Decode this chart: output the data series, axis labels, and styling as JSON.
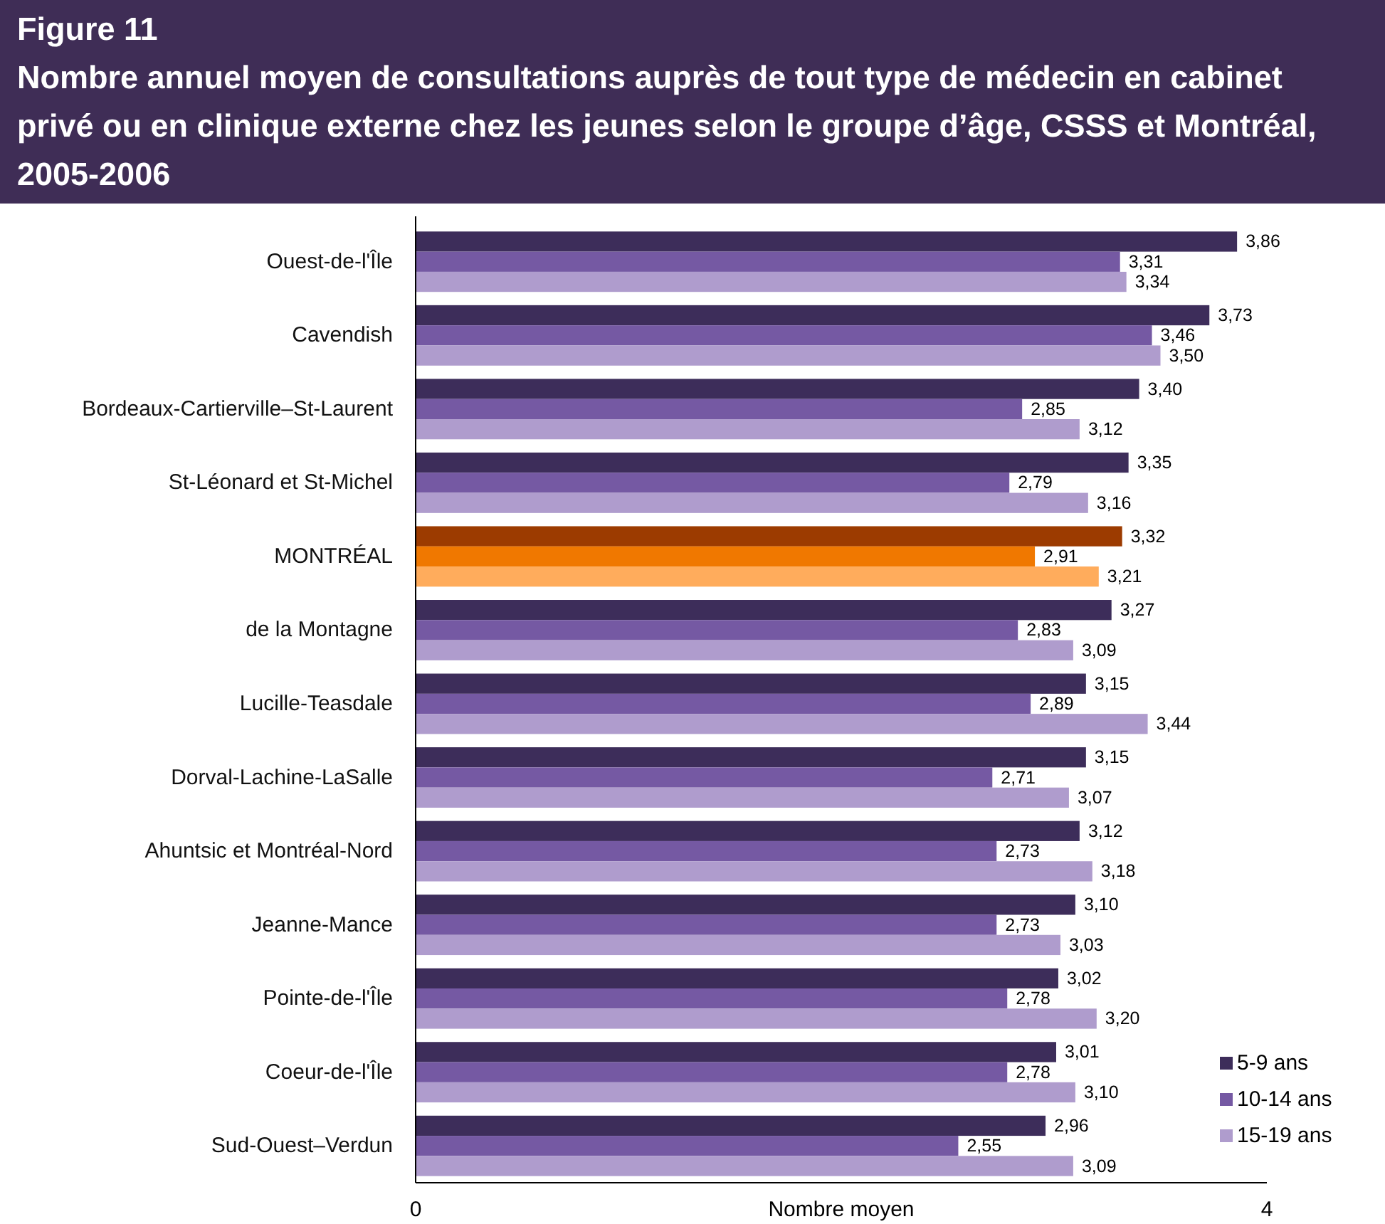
{
  "chart_data": {
    "type": "bar",
    "orientation": "horizontal",
    "title": "Figure 11",
    "subtitle": "Nombre annuel moyen de consultations auprès de tout type de médecin en cabinet privé ou en clinique externe chez les jeunes selon le groupe d’âge, CSSS et Montréal, 2005-2006",
    "xlabel": "Nombre moyen",
    "categories": [
      "Ouest-de-l'Île",
      "Cavendish",
      "Bordeaux-Cartierville–St-Laurent",
      "St-Léonard et St-Michel",
      "MONTRÉAL",
      "de la Montagne",
      "Lucille-Teasdale",
      "Dorval-Lachine-LaSalle",
      "Ahuntsic et Montréal-Nord",
      "Jeanne-Mance",
      "Pointe-de-l'Île",
      "Coeur-de-l'Île",
      "Sud-Ouest–Verdun"
    ],
    "series": [
      {
        "name": "5-9 ans",
        "color": "#3d2d5a",
        "colors": [
          "#3d2d5a",
          "#3d2d5a",
          "#3d2d5a",
          "#3d2d5a",
          "#9c3b00",
          "#3d2d5a",
          "#3d2d5a",
          "#3d2d5a",
          "#3d2d5a",
          "#3d2d5a",
          "#3d2d5a",
          "#3d2d5a",
          "#3d2d5a"
        ],
        "values": [
          3.86,
          3.73,
          3.4,
          3.35,
          3.32,
          3.27,
          3.15,
          3.15,
          3.12,
          3.1,
          3.02,
          3.01,
          2.96
        ],
        "value_labels": [
          "3,86",
          "3,73",
          "3,40",
          "3,35",
          "3,32",
          "3,27",
          "3,15",
          "3,15",
          "3,12",
          "3,10",
          "3,02",
          "3,01",
          "2,96"
        ]
      },
      {
        "name": "10-14 ans",
        "color": "#7559a3",
        "colors": [
          "#7559a3",
          "#7559a3",
          "#7559a3",
          "#7559a3",
          "#f07800",
          "#7559a3",
          "#7559a3",
          "#7559a3",
          "#7559a3",
          "#7559a3",
          "#7559a3",
          "#7559a3",
          "#7559a3"
        ],
        "values": [
          3.31,
          3.46,
          2.85,
          2.79,
          2.91,
          2.83,
          2.89,
          2.71,
          2.73,
          2.73,
          2.78,
          2.78,
          2.55
        ],
        "value_labels": [
          "3,31",
          "3,46",
          "2,85",
          "2,79",
          "2,91",
          "2,83",
          "2,89",
          "2,71",
          "2,73",
          "2,73",
          "2,78",
          "2,78",
          "2,55"
        ]
      },
      {
        "name": "15-19 ans",
        "color": "#af9ccd",
        "colors": [
          "#af9ccd",
          "#af9ccd",
          "#af9ccd",
          "#af9ccd",
          "#ffac5c",
          "#af9ccd",
          "#af9ccd",
          "#af9ccd",
          "#af9ccd",
          "#af9ccd",
          "#af9ccd",
          "#af9ccd",
          "#af9ccd"
        ],
        "values": [
          3.34,
          3.5,
          3.12,
          3.16,
          3.21,
          3.09,
          3.44,
          3.07,
          3.18,
          3.03,
          3.2,
          3.1,
          3.09
        ],
        "value_labels": [
          "3,34",
          "3,50",
          "3,12",
          "3,16",
          "3,21",
          "3,09",
          "3,44",
          "3,07",
          "3,18",
          "3,03",
          "3,20",
          "3,10",
          "3,09"
        ]
      }
    ],
    "xlim": [
      0,
      4
    ],
    "xticks": [
      0,
      4
    ],
    "legend": "bottom right"
  }
}
